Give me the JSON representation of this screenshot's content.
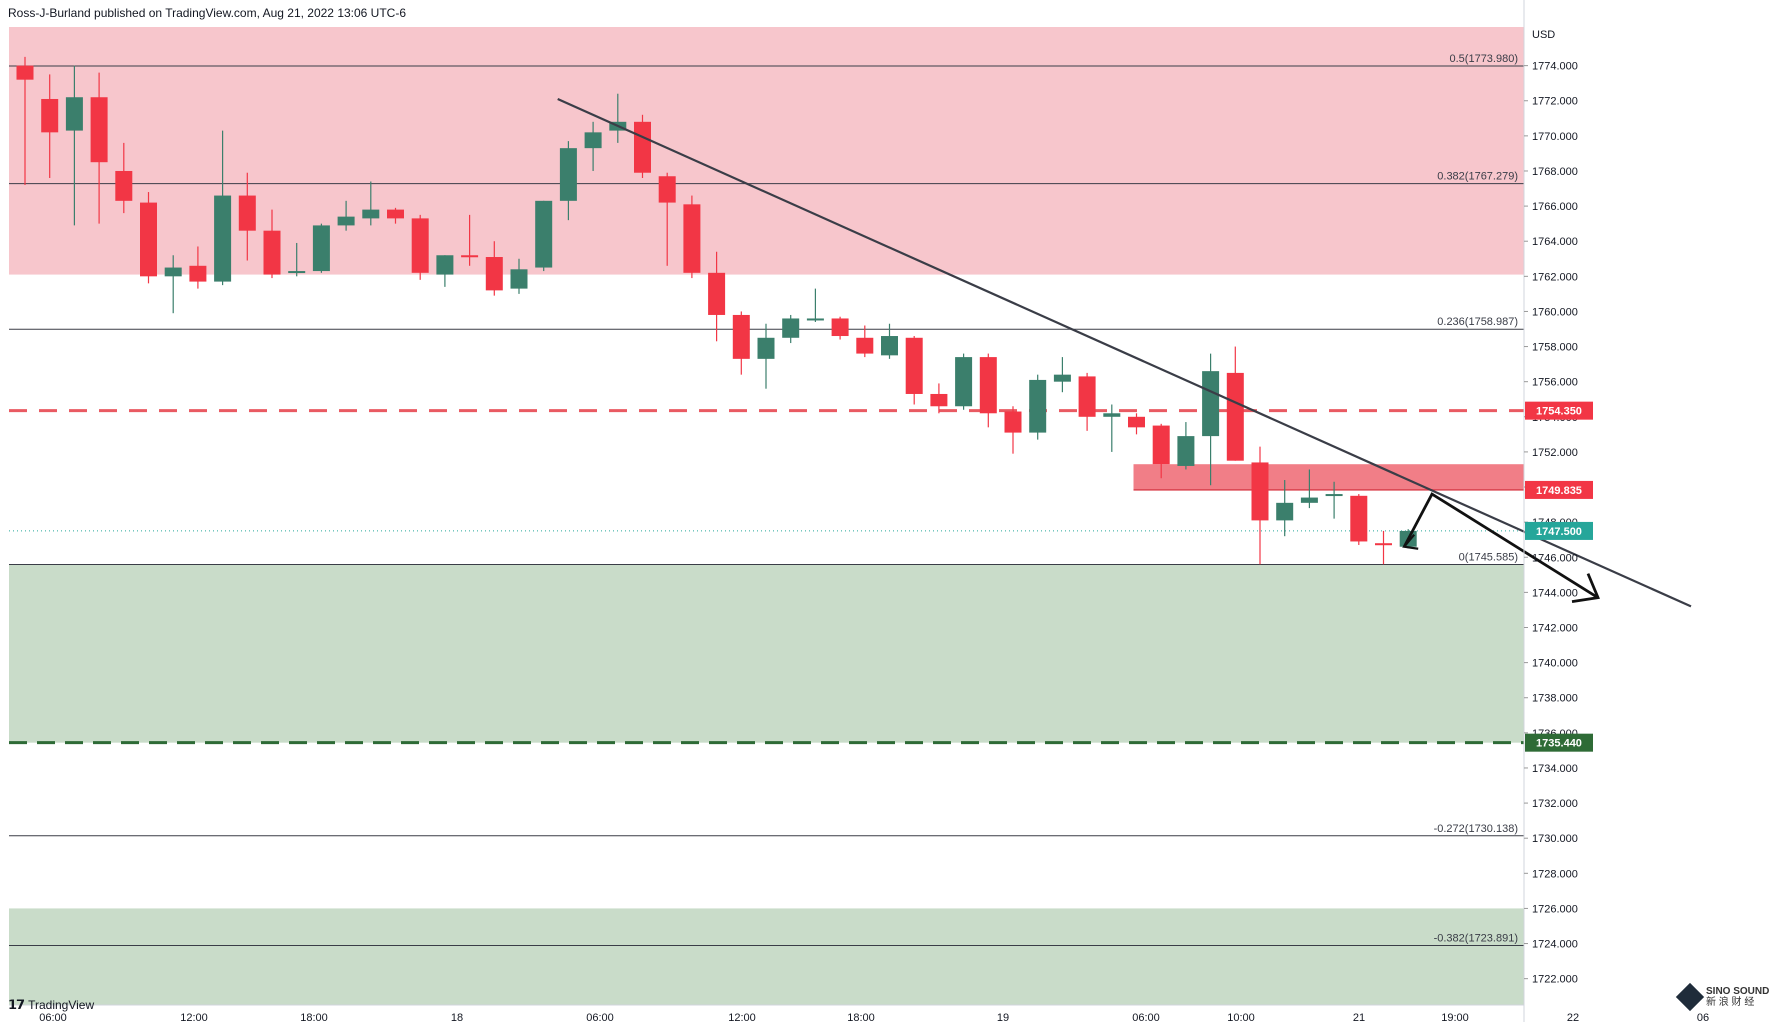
{
  "header": {
    "publisher_line": "Ross-J-Burland published on TradingView.com, Aug 21, 2022 13:06 UTC-6"
  },
  "footer": {
    "logo_text": "TradingView",
    "watermark_line1": "SINO SOUND",
    "watermark_line2": "新 浪 财 经"
  },
  "colors": {
    "up": "#26a69a",
    "up_dark": "#3b7f6c",
    "down": "#f23645",
    "resistance_zone": "#f7c6cc",
    "support_zone": "#c9dcc9",
    "red_dashed": "#e95a62",
    "green_dashed": "#2e6b36",
    "trendline": "#3a3d47"
  },
  "chart_data": {
    "type": "candlestick",
    "symbol_currency": "USD",
    "ylim": [
      1720.5,
      1776.2
    ],
    "y_ticks": [
      1722,
      1724,
      1726,
      1728,
      1730,
      1732,
      1734,
      1736,
      1738,
      1740,
      1742,
      1744,
      1746,
      1748,
      1750,
      1752,
      1754,
      1756,
      1758,
      1760,
      1762,
      1764,
      1766,
      1768,
      1770,
      1772,
      1774
    ],
    "x_ticks": [
      "06:00",
      "12:00",
      "18:00",
      "18",
      "06:00",
      "12:00",
      "18:00",
      "19",
      "06:00",
      "10:00",
      "21",
      "19:00",
      "22",
      "06"
    ],
    "candles": [
      {
        "o": 1774.0,
        "h": 1774.5,
        "l": 1767.2,
        "c": 1773.2
      },
      {
        "o": 1772.1,
        "h": 1773.5,
        "l": 1767.6,
        "c": 1770.2
      },
      {
        "o": 1770.3,
        "h": 1774.0,
        "l": 1764.9,
        "c": 1772.2
      },
      {
        "o": 1772.2,
        "h": 1773.6,
        "l": 1765.0,
        "c": 1768.5
      },
      {
        "o": 1768.0,
        "h": 1769.6,
        "l": 1765.6,
        "c": 1766.3
      },
      {
        "o": 1766.2,
        "h": 1766.8,
        "l": 1761.6,
        "c": 1762.0
      },
      {
        "o": 1762.0,
        "h": 1763.2,
        "l": 1759.9,
        "c": 1762.5
      },
      {
        "o": 1762.6,
        "h": 1763.7,
        "l": 1761.3,
        "c": 1761.7
      },
      {
        "o": 1761.7,
        "h": 1770.3,
        "l": 1761.5,
        "c": 1766.6
      },
      {
        "o": 1766.6,
        "h": 1767.9,
        "l": 1762.9,
        "c": 1764.6
      },
      {
        "o": 1764.6,
        "h": 1765.8,
        "l": 1761.9,
        "c": 1762.1
      },
      {
        "o": 1762.2,
        "h": 1763.9,
        "l": 1762.0,
        "c": 1762.3
      },
      {
        "o": 1762.3,
        "h": 1765.0,
        "l": 1762.2,
        "c": 1764.9
      },
      {
        "o": 1764.9,
        "h": 1766.3,
        "l": 1764.6,
        "c": 1765.4
      },
      {
        "o": 1765.3,
        "h": 1767.4,
        "l": 1764.9,
        "c": 1765.8
      },
      {
        "o": 1765.8,
        "h": 1765.9,
        "l": 1765.0,
        "c": 1765.3
      },
      {
        "o": 1765.3,
        "h": 1765.5,
        "l": 1761.8,
        "c": 1762.2
      },
      {
        "o": 1762.1,
        "h": 1763.2,
        "l": 1761.4,
        "c": 1763.2
      },
      {
        "o": 1763.2,
        "h": 1765.5,
        "l": 1762.6,
        "c": 1763.1
      },
      {
        "o": 1763.1,
        "h": 1764.0,
        "l": 1760.9,
        "c": 1761.2
      },
      {
        "o": 1761.3,
        "h": 1763.0,
        "l": 1761.0,
        "c": 1762.4
      },
      {
        "o": 1762.5,
        "h": 1766.3,
        "l": 1762.3,
        "c": 1766.3
      },
      {
        "o": 1766.3,
        "h": 1769.7,
        "l": 1765.2,
        "c": 1769.3
      },
      {
        "o": 1769.3,
        "h": 1770.8,
        "l": 1768.0,
        "c": 1770.2
      },
      {
        "o": 1770.3,
        "h": 1772.4,
        "l": 1769.6,
        "c": 1770.8
      },
      {
        "o": 1770.8,
        "h": 1771.2,
        "l": 1767.6,
        "c": 1767.9
      },
      {
        "o": 1767.7,
        "h": 1767.9,
        "l": 1762.6,
        "c": 1766.2
      },
      {
        "o": 1766.1,
        "h": 1766.6,
        "l": 1761.9,
        "c": 1762.2
      },
      {
        "o": 1762.2,
        "h": 1763.4,
        "l": 1758.3,
        "c": 1759.8
      },
      {
        "o": 1759.8,
        "h": 1760.0,
        "l": 1756.4,
        "c": 1757.3
      },
      {
        "o": 1757.3,
        "h": 1759.3,
        "l": 1755.6,
        "c": 1758.5
      },
      {
        "o": 1758.5,
        "h": 1759.8,
        "l": 1758.2,
        "c": 1759.6
      },
      {
        "o": 1759.6,
        "h": 1761.3,
        "l": 1759.4,
        "c": 1759.6
      },
      {
        "o": 1759.6,
        "h": 1759.7,
        "l": 1758.4,
        "c": 1758.6
      },
      {
        "o": 1758.5,
        "h": 1759.2,
        "l": 1757.4,
        "c": 1757.6
      },
      {
        "o": 1757.5,
        "h": 1759.3,
        "l": 1757.3,
        "c": 1758.6
      },
      {
        "o": 1758.5,
        "h": 1758.6,
        "l": 1754.7,
        "c": 1755.3
      },
      {
        "o": 1755.3,
        "h": 1755.9,
        "l": 1754.2,
        "c": 1754.6
      },
      {
        "o": 1754.6,
        "h": 1757.6,
        "l": 1754.4,
        "c": 1757.4
      },
      {
        "o": 1757.4,
        "h": 1757.6,
        "l": 1753.4,
        "c": 1754.2
      },
      {
        "o": 1754.3,
        "h": 1754.6,
        "l": 1751.9,
        "c": 1753.1
      },
      {
        "o": 1753.1,
        "h": 1756.4,
        "l": 1752.7,
        "c": 1756.1
      },
      {
        "o": 1756.0,
        "h": 1757.4,
        "l": 1755.4,
        "c": 1756.4
      },
      {
        "o": 1756.3,
        "h": 1756.5,
        "l": 1753.2,
        "c": 1754.0
      },
      {
        "o": 1754.0,
        "h": 1754.7,
        "l": 1752.0,
        "c": 1754.2
      },
      {
        "o": 1754.0,
        "h": 1754.2,
        "l": 1753.0,
        "c": 1753.4
      },
      {
        "o": 1753.5,
        "h": 1753.6,
        "l": 1750.5,
        "c": 1751.3
      },
      {
        "o": 1751.2,
        "h": 1753.7,
        "l": 1751.0,
        "c": 1752.9
      },
      {
        "o": 1752.9,
        "h": 1757.6,
        "l": 1750.1,
        "c": 1756.6
      },
      {
        "o": 1756.5,
        "h": 1758.0,
        "l": 1751.5,
        "c": 1751.5
      },
      {
        "o": 1751.4,
        "h": 1752.3,
        "l": 1745.6,
        "c": 1748.1
      },
      {
        "o": 1748.1,
        "h": 1750.4,
        "l": 1747.2,
        "c": 1749.1
      },
      {
        "o": 1749.1,
        "h": 1751.0,
        "l": 1748.8,
        "c": 1749.4
      },
      {
        "o": 1749.6,
        "h": 1750.3,
        "l": 1748.2,
        "c": 1749.6
      },
      {
        "o": 1749.5,
        "h": 1749.6,
        "l": 1746.7,
        "c": 1746.9
      },
      {
        "o": 1746.8,
        "h": 1747.5,
        "l": 1745.6,
        "c": 1746.7
      },
      {
        "o": 1746.6,
        "h": 1747.6,
        "l": 1746.5,
        "c": 1747.5
      }
    ],
    "fib_levels": [
      {
        "label": "0.5(1773.980)",
        "value": 1773.98
      },
      {
        "label": "0.382(1767.279)",
        "value": 1767.279
      },
      {
        "label": "0.236(1758.987)",
        "value": 1758.987
      },
      {
        "label": "0(1745.585)",
        "value": 1745.585
      },
      {
        "label": "-0.272(1730.138)",
        "value": 1730.138
      },
      {
        "label": "-0.382(1723.891)",
        "value": 1723.891
      }
    ],
    "zones": [
      {
        "name": "resistance",
        "from": 1762.1,
        "to": 1776.2
      },
      {
        "name": "support",
        "from": 1735.44,
        "to": 1745.585
      },
      {
        "name": "lower-support",
        "from": 1720.5,
        "to": 1726.0
      },
      {
        "name": "supply-box",
        "from": 1749.835,
        "to": 1751.3
      }
    ],
    "horizontal_levels": [
      {
        "label": "1754.350",
        "value": 1754.35,
        "style": "red-dashed"
      },
      {
        "label": "1749.835",
        "value": 1749.835,
        "style": "red-solid"
      },
      {
        "label": "1747.500",
        "value": 1747.5,
        "style": "current-price"
      },
      {
        "label": "1735.440",
        "value": 1735.44,
        "style": "green-dashed"
      }
    ],
    "trendline": {
      "start_value": 1772.1,
      "end_value": 1743.2
    },
    "projection_path": [
      1746.6,
      1749.6,
      1743.7
    ]
  }
}
